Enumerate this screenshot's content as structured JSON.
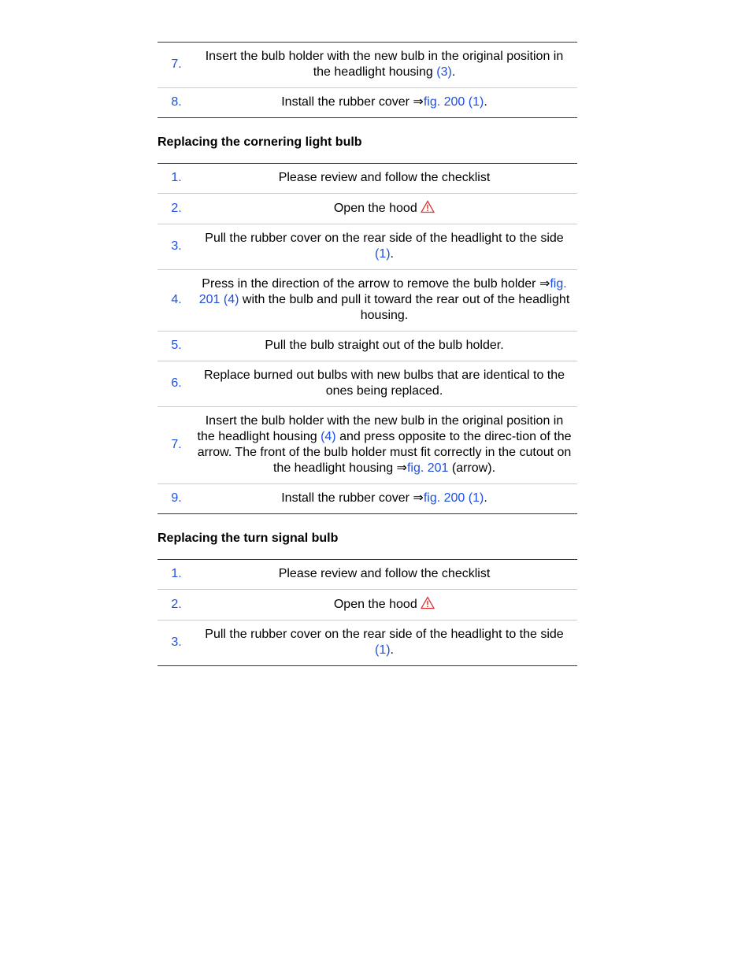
{
  "link_color": "#1f4fe0",
  "top_table": {
    "steps": [
      {
        "number": "7.",
        "text": [
          "Insert the bulb holder with the new bulb in the original position in the headlight housing ",
          {
            "link": "(3)"
          },
          "."
        ]
      },
      {
        "number": "8.",
        "text": [
          "Install the rubber cover ⇒",
          {
            "link": "fig. 200 (1)"
          },
          "."
        ]
      }
    ]
  },
  "sections": [
    {
      "heading": "Replacing the cornering light bulb",
      "steps": [
        {
          "number": "1.",
          "text": [
            "Please review and follow the checklist"
          ]
        },
        {
          "number": "2.",
          "text": [
            "Open the hood "
          ],
          "icon": "warning"
        },
        {
          "number": "3.",
          "text": [
            "Pull the rubber cover on the rear side of the headlight to the side ",
            {
              "link": "(1)"
            },
            "."
          ]
        },
        {
          "number": "4.",
          "text": [
            "Press in the direction of the arrow to remove the bulb holder ⇒",
            {
              "link": "fig. 201 (4)"
            },
            " with the bulb and pull it toward the rear out of the headlight housing."
          ]
        },
        {
          "number": "5.",
          "text": [
            "Pull the bulb straight out of the bulb holder."
          ]
        },
        {
          "number": "6.",
          "text": [
            "Replace burned out bulbs with new bulbs that are identical to the ones being replaced."
          ]
        },
        {
          "number": "7.",
          "text": [
            "Insert the bulb holder with the new bulb in the original position in the headlight housing ",
            {
              "link": "(4)"
            },
            " and press opposite to the direc-tion of the arrow. The front of the bulb holder must fit correctly in the cutout on the headlight housing ⇒",
            {
              "link": "fig. 201"
            },
            " (arrow)."
          ]
        },
        {
          "number": "9.",
          "text": [
            "Install the rubber cover ⇒",
            {
              "link": "fig. 200 (1)"
            },
            "."
          ]
        }
      ]
    },
    {
      "heading": "Replacing the turn signal bulb",
      "steps": [
        {
          "number": "1.",
          "text": [
            "Please review and follow the checklist"
          ]
        },
        {
          "number": "2.",
          "text": [
            "Open the hood "
          ],
          "icon": "warning"
        },
        {
          "number": "3.",
          "text": [
            "Pull the rubber cover on the rear side of the headlight to the side ",
            {
              "link": "(1)"
            },
            "."
          ]
        }
      ]
    }
  ]
}
